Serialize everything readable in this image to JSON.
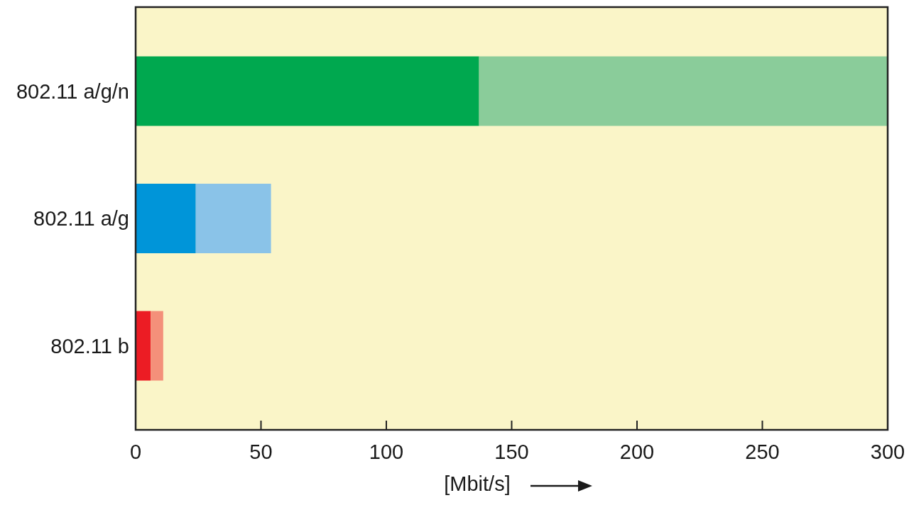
{
  "chart_data": {
    "type": "bar",
    "orientation": "horizontal",
    "stacked": true,
    "categories": [
      "802.11 a/g/n",
      "802.11 a/g",
      "802.11 b"
    ],
    "series": [
      {
        "colors": [
          "#00a84f",
          "#0095d9",
          "#ec1c24"
        ],
        "values": [
          137,
          24,
          6
        ]
      },
      {
        "colors": [
          "#8acc9a",
          "#8ac3e8",
          "#f4907a"
        ],
        "values": [
          163,
          30,
          5
        ]
      }
    ],
    "xlabel": "[Mbit/s]",
    "xlim": [
      0,
      300
    ],
    "xticks": [
      0,
      50,
      100,
      150,
      200,
      250,
      300
    ]
  }
}
